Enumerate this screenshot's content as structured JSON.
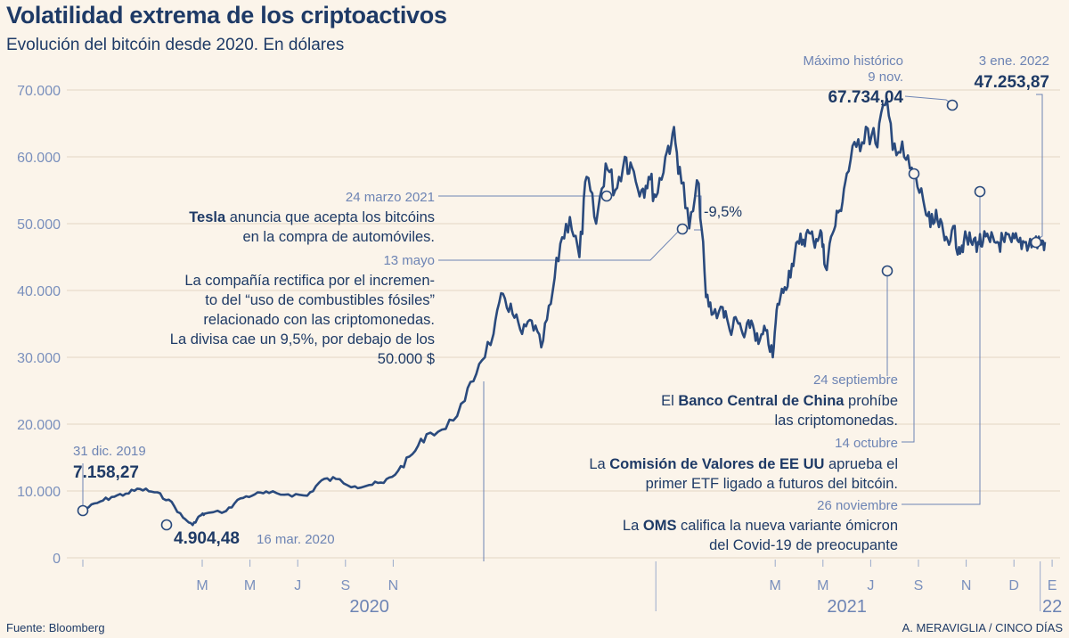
{
  "chart_data": {
    "type": "line",
    "title": "Volatilidad extrema de los criptoactivos",
    "subtitle": "Evolución del bitcóin desde 2020. En dólares",
    "ylim": [
      0,
      70000
    ],
    "y_ticks": [
      0,
      10000,
      20000,
      30000,
      40000,
      50000,
      60000,
      70000
    ],
    "y_tick_labels": [
      "0",
      "10.000",
      "20.000",
      "30.000",
      "40.000",
      "50.000",
      "60.000",
      "70.000"
    ],
    "x_tick_labels": [
      {
        "m": 2.5,
        "label": "M"
      },
      {
        "m": 3.5,
        "label": "M"
      },
      {
        "m": 4.5,
        "label": "J"
      },
      {
        "m": 5.5,
        "label": "S"
      },
      {
        "m": 6.5,
        "label": "N"
      },
      {
        "m": 14.5,
        "label": "M"
      },
      {
        "m": 15.5,
        "label": "M"
      },
      {
        "m": 16.5,
        "label": "J"
      },
      {
        "m": 17.5,
        "label": "S"
      },
      {
        "m": 18.5,
        "label": "N"
      },
      {
        "m": 19.5,
        "label": "D"
      },
      {
        "m": 20.3,
        "label": "E"
      }
    ],
    "years": [
      {
        "m": 6.0,
        "label": "2020"
      },
      {
        "m": 16.0,
        "label": "2021"
      },
      {
        "m": 20.3,
        "label": "22"
      }
    ],
    "year_dividers": [
      12,
      20.05
    ],
    "series": [
      {
        "name": "Bitcoin (USD)",
        "x": [
          0,
          0.3,
          0.6,
          0.9,
          1.2,
          1.5,
          1.8,
          2.1,
          2.3,
          2.45,
          2.55,
          3.0,
          3.3,
          3.6,
          3.9,
          4.3,
          4.7,
          5.0,
          5.3,
          5.7,
          6.0,
          6.3,
          6.6,
          6.9,
          7.2,
          7.6,
          8.0,
          8.3,
          8.6,
          8.8,
          9.0,
          9.2,
          9.4,
          9.6,
          9.8,
          10.0,
          10.2,
          10.4,
          10.55,
          10.75,
          10.95,
          11.15,
          11.35,
          11.5,
          11.7,
          11.85,
          12.0,
          12.2,
          12.35,
          12.5,
          12.7,
          12.9,
          13.05,
          13.2,
          13.4,
          13.55,
          13.7,
          13.85,
          14.0,
          14.15,
          14.3,
          14.45,
          14.55,
          14.7,
          14.85,
          15.0,
          15.15,
          15.3,
          15.45,
          15.55,
          15.7,
          15.85,
          16.0,
          16.2,
          16.4,
          16.6,
          16.8,
          17.0,
          17.2,
          17.4,
          17.6,
          17.75,
          17.9,
          18.05,
          18.2,
          18.35,
          18.45,
          18.6,
          18.75,
          18.85,
          19.0,
          19.15,
          19.3,
          19.45,
          19.6,
          19.75,
          19.9,
          20.05,
          20.15
        ],
        "values": [
          7158,
          8200,
          9100,
          9600,
          10300,
          9800,
          8700,
          6000,
          4904,
          6300,
          6600,
          7000,
          8900,
          9500,
          9700,
          9500,
          9300,
          11600,
          11800,
          10700,
          10900,
          11200,
          13000,
          15500,
          18500,
          19300,
          23500,
          29000,
          33500,
          39500,
          36500,
          33500,
          35500,
          31500,
          38000,
          47000,
          51000,
          45000,
          57000,
          50000,
          59000,
          55000,
          60000,
          58500,
          55000,
          57000,
          54000,
          60000,
          63500,
          58500,
          49300,
          56000,
          39000,
          36500,
          37500,
          34000,
          35500,
          33000,
          35500,
          32000,
          34000,
          30000,
          38000,
          40500,
          44000,
          47000,
          48500,
          47500,
          49000,
          43500,
          48500,
          52000,
          57500,
          61500,
          64500,
          62000,
          67734,
          62000,
          60000,
          57000,
          53500,
          49500,
          50500,
          47500,
          49000,
          46500,
          47254,
          47254,
          47254,
          47254,
          47254,
          47254,
          47254,
          47254,
          47254,
          47254,
          47254,
          47254,
          47254
        ]
      }
    ],
    "annotations": {
      "start": {
        "date": "31 dic. 2019",
        "value": "7.158,27"
      },
      "low": {
        "value": "4.904,48",
        "date": "16 mar. 2020"
      },
      "ath": {
        "label1": "Máximo histórico",
        "label2": "9 nov.",
        "value": "67.734,04"
      },
      "end": {
        "date": "3 ene. 2022",
        "value": "47.253,87"
      },
      "tesla": {
        "date": "24 marzo 2021",
        "bold": "Tesla",
        "text1": " anuncia que acepta los bitcóins",
        "text2": "en la compra de automóviles."
      },
      "drop": {
        "label": "-9,5%"
      },
      "may13": {
        "date": "13 mayo",
        "lines": [
          "La compañía rectifica por el incremen-",
          "to del “uso de combustibles fósiles”",
          "relacionado con las criptomonedas.",
          "La divisa cae un 9,5%, por debajo de los",
          "50.000 $"
        ]
      },
      "china": {
        "date": "24 septiembre",
        "pre": "El ",
        "bold": "Banco Central de China",
        "post": " prohíbe",
        "line2": "las criptomonedas."
      },
      "sec": {
        "date": "14 octubre",
        "pre": "La ",
        "bold": "Comisión de Valores de EE UU",
        "post": " aprueba el",
        "line2": "primer ETF ligado a futuros del bitcóin."
      },
      "oms": {
        "date": "26 noviembre",
        "pre": "La ",
        "bold": "OMS",
        "post": " califica la nueva variante ómicron",
        "line2": "del Covid-19 de preocupante"
      }
    }
  },
  "footer": {
    "source": "Fuente: Bloomberg",
    "credit": "A. MERAVIGLIA / CINCO DÍAS"
  },
  "colors": {
    "line": "#2a4a7d",
    "accent": "#6d84b4",
    "background": "#fbf4ea"
  }
}
